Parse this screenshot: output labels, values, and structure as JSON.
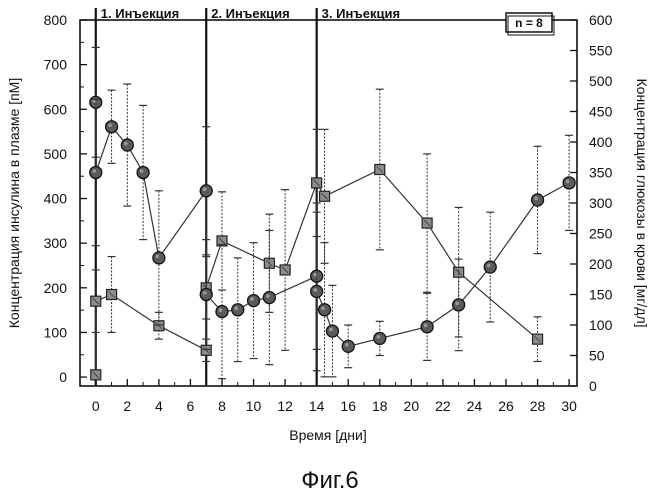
{
  "chart_data": {
    "type": "line",
    "caption": "Фиг.6",
    "xlabel": "Время [дни]",
    "ylabel_left": "Концентрация инсулина в плазме [пМ]",
    "ylabel_right": "Концентрация глюкозы в крови [мг/дл]",
    "sample_size_label": "n = 8",
    "xlim": [
      -1,
      30.5
    ],
    "ylim_left": [
      -20,
      800
    ],
    "ylim_right": [
      0,
      600
    ],
    "x_ticks": [
      0,
      2,
      4,
      6,
      8,
      10,
      12,
      14,
      16,
      18,
      20,
      22,
      24,
      26,
      28,
      30
    ],
    "x_tick_labels": [
      "0",
      "2",
      "4",
      "6",
      "8",
      "10",
      "12",
      "14",
      "16",
      "18",
      "20",
      "22",
      "24",
      "26",
      "28",
      "30"
    ],
    "y_left_ticks": [
      0,
      100,
      200,
      300,
      400,
      500,
      600,
      700,
      800
    ],
    "y_left_tick_labels": [
      "0",
      "100",
      "200",
      "300",
      "400",
      "500",
      "600",
      "700",
      "800"
    ],
    "y_right_ticks": [
      0,
      50,
      100,
      150,
      200,
      250,
      300,
      350,
      400,
      450,
      500,
      550,
      600
    ],
    "y_right_tick_labels": [
      "0",
      "50",
      "100",
      "150",
      "200",
      "250",
      "300",
      "350",
      "400",
      "450",
      "500",
      "550",
      "600"
    ],
    "injections": [
      {
        "day": 0,
        "label": "1. Инъекция"
      },
      {
        "day": 7,
        "label": "2. Инъекция"
      },
      {
        "day": 14,
        "label": "3. Инъекция"
      }
    ],
    "series": [
      {
        "name": "Концентрация инсулина в плазме",
        "axis": "left",
        "marker": "square",
        "x": [
          0,
          0,
          1,
          4,
          7,
          7,
          8,
          11,
          12,
          14,
          14.5,
          18,
          21,
          23,
          28
        ],
        "y": [
          5,
          170,
          185,
          115,
          60,
          200,
          305,
          255,
          240,
          435,
          405,
          465,
          345,
          235,
          85
        ],
        "err": [
          0,
          70,
          85,
          30,
          25,
          70,
          110,
          110,
          180,
          120,
          150,
          180,
          155,
          145,
          50
        ]
      },
      {
        "name": "Концентрация глюкозы в крови",
        "axis": "right",
        "marker": "circle",
        "x": [
          0,
          0,
          1,
          2,
          3,
          4,
          7,
          7,
          8,
          9,
          10,
          11,
          14,
          14,
          14.5,
          15,
          16,
          18,
          21,
          23,
          25,
          28,
          30
        ],
        "y": [
          465,
          350,
          425,
          395,
          350,
          210,
          320,
          150,
          122,
          125,
          140,
          145,
          180,
          155,
          125,
          90,
          65,
          78,
          97,
          133,
          195,
          305,
          333
        ],
        "err": [
          90,
          120,
          60,
          100,
          110,
          110,
          105,
          90,
          110,
          85,
          95,
          110,
          120,
          130,
          110,
          75,
          35,
          28,
          55,
          75,
          90,
          88,
          78
        ]
      }
    ]
  }
}
